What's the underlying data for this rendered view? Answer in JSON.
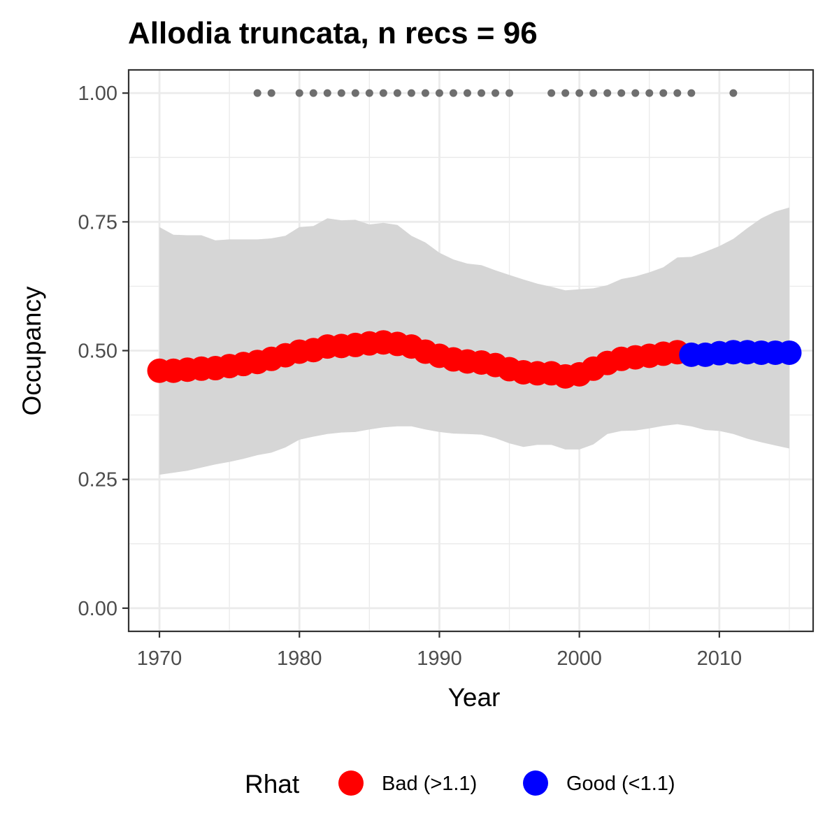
{
  "chart_data": {
    "type": "line",
    "title": "Allodia truncata, n recs = 96",
    "xlabel": "Year",
    "ylabel": "Occupancy",
    "xlim": [
      1967.8,
      2016.7
    ],
    "ylim": [
      -0.045,
      1.045
    ],
    "x_ticks": [
      1970,
      1980,
      1990,
      2000,
      2010
    ],
    "x_tick_labels": [
      "1970",
      "1980",
      "1990",
      "2000",
      "2010"
    ],
    "y_ticks": [
      0,
      0.25,
      0.5,
      0.75,
      1
    ],
    "y_tick_labels": [
      "0.00",
      "0.25",
      "0.50",
      "0.75",
      "1.00"
    ],
    "grid": true,
    "legend": {
      "title": "Rhat",
      "position": "bottom",
      "entries": [
        {
          "label": "Bad (>1.1)",
          "color": "#ff0000"
        },
        {
          "label": "Good (<1.1)",
          "color": "#0000ff"
        }
      ]
    },
    "colors": {
      "bad": "#ff0000",
      "good": "#0000ff",
      "ribbon": "#d6d6d6",
      "records": "#6e6e6e"
    },
    "series": [
      {
        "name": "Occupancy",
        "x": [
          1970,
          1971,
          1972,
          1973,
          1974,
          1975,
          1976,
          1977,
          1978,
          1979,
          1980,
          1981,
          1982,
          1983,
          1984,
          1985,
          1986,
          1987,
          1988,
          1989,
          1990,
          1991,
          1992,
          1993,
          1994,
          1995,
          1996,
          1997,
          1998,
          1999,
          2000,
          2001,
          2002,
          2003,
          2004,
          2005,
          2006,
          2007,
          2008,
          2009,
          2010,
          2011,
          2012,
          2013,
          2014,
          2015
        ],
        "y": [
          0.461,
          0.461,
          0.463,
          0.465,
          0.466,
          0.47,
          0.474,
          0.478,
          0.484,
          0.491,
          0.498,
          0.501,
          0.508,
          0.509,
          0.511,
          0.514,
          0.516,
          0.513,
          0.508,
          0.498,
          0.49,
          0.483,
          0.479,
          0.477,
          0.472,
          0.464,
          0.458,
          0.456,
          0.456,
          0.45,
          0.454,
          0.465,
          0.476,
          0.484,
          0.487,
          0.49,
          0.494,
          0.497,
          0.492,
          0.492,
          0.495,
          0.497,
          0.497,
          0.496,
          0.496,
          0.496
        ],
        "rhat": [
          "Bad (>1.1)",
          "Bad (>1.1)",
          "Bad (>1.1)",
          "Bad (>1.1)",
          "Bad (>1.1)",
          "Bad (>1.1)",
          "Bad (>1.1)",
          "Bad (>1.1)",
          "Bad (>1.1)",
          "Bad (>1.1)",
          "Bad (>1.1)",
          "Bad (>1.1)",
          "Bad (>1.1)",
          "Bad (>1.1)",
          "Bad (>1.1)",
          "Bad (>1.1)",
          "Bad (>1.1)",
          "Bad (>1.1)",
          "Bad (>1.1)",
          "Bad (>1.1)",
          "Bad (>1.1)",
          "Bad (>1.1)",
          "Bad (>1.1)",
          "Bad (>1.1)",
          "Bad (>1.1)",
          "Bad (>1.1)",
          "Bad (>1.1)",
          "Bad (>1.1)",
          "Bad (>1.1)",
          "Bad (>1.1)",
          "Bad (>1.1)",
          "Bad (>1.1)",
          "Bad (>1.1)",
          "Bad (>1.1)",
          "Bad (>1.1)",
          "Bad (>1.1)",
          "Bad (>1.1)",
          "Bad (>1.1)",
          "Good (<1.1)",
          "Good (<1.1)",
          "Good (<1.1)",
          "Good (<1.1)",
          "Good (<1.1)",
          "Good (<1.1)",
          "Good (<1.1)",
          "Good (<1.1)"
        ],
        "lower": [
          0.259,
          0.263,
          0.267,
          0.273,
          0.279,
          0.284,
          0.29,
          0.297,
          0.302,
          0.312,
          0.327,
          0.333,
          0.338,
          0.341,
          0.342,
          0.347,
          0.351,
          0.353,
          0.353,
          0.347,
          0.342,
          0.339,
          0.338,
          0.337,
          0.33,
          0.32,
          0.313,
          0.317,
          0.317,
          0.308,
          0.308,
          0.318,
          0.338,
          0.344,
          0.345,
          0.349,
          0.354,
          0.357,
          0.353,
          0.346,
          0.344,
          0.338,
          0.329,
          0.322,
          0.316,
          0.31
        ],
        "upper": [
          0.74,
          0.725,
          0.724,
          0.724,
          0.714,
          0.716,
          0.716,
          0.716,
          0.718,
          0.723,
          0.74,
          0.742,
          0.757,
          0.753,
          0.754,
          0.745,
          0.748,
          0.744,
          0.723,
          0.71,
          0.69,
          0.677,
          0.669,
          0.666,
          0.656,
          0.647,
          0.638,
          0.63,
          0.624,
          0.617,
          0.619,
          0.621,
          0.627,
          0.639,
          0.644,
          0.652,
          0.662,
          0.681,
          0.682,
          0.692,
          0.703,
          0.717,
          0.738,
          0.757,
          0.77,
          0.778
        ]
      }
    ],
    "record_years": [
      1977,
      1978,
      1980,
      1981,
      1982,
      1983,
      1984,
      1985,
      1986,
      1987,
      1988,
      1989,
      1990,
      1991,
      1992,
      1993,
      1994,
      1995,
      1998,
      1999,
      2000,
      2001,
      2002,
      2003,
      2004,
      2005,
      2006,
      2007,
      2008,
      2011
    ],
    "record_value": 1
  }
}
